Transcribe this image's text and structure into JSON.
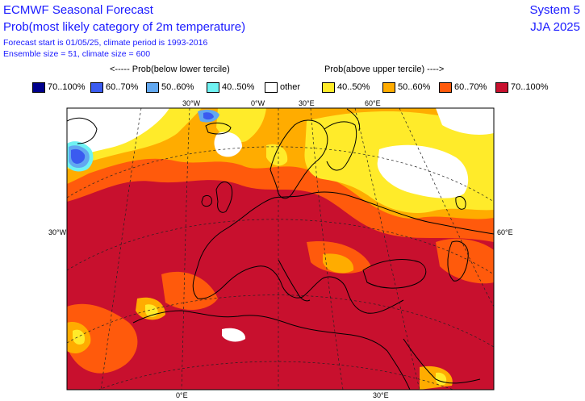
{
  "header": {
    "title_line1": "ECMWF Seasonal Forecast",
    "title_line2": "Prob(most likely category of 2m temperature)",
    "meta_line1": "Forecast start is 01/05/25, climate period is 1993-2016",
    "meta_line2": "Ensemble size = 51, climate size = 600",
    "system": "System 5",
    "season": "JJA 2025"
  },
  "legend": {
    "below_heading": "<----- Prob(below lower tercile)",
    "above_heading": "Prob(above upper tercile) ---->",
    "items": [
      {
        "label": "70..100%",
        "color": "#00008c"
      },
      {
        "label": "60..70%",
        "color": "#3a5bf0"
      },
      {
        "label": "50..60%",
        "color": "#62a8f0"
      },
      {
        "label": "40..50%",
        "color": "#6ff2f2"
      },
      {
        "label": "other",
        "color": "#ffffff"
      },
      {
        "label": "40..50%",
        "color": "#ffeb2a"
      },
      {
        "label": "50..60%",
        "color": "#ffac00"
      },
      {
        "label": "60..70%",
        "color": "#ff5a0c"
      },
      {
        "label": "70..100%",
        "color": "#c8102e"
      }
    ]
  },
  "map": {
    "projection": "conic",
    "region": "Europe, North Atlantic and North Africa",
    "labels": {
      "top": [
        "30°W",
        "0°W",
        "30°E",
        "60°E"
      ],
      "left": "30°W",
      "right": "60°E",
      "bottom": [
        "0°E",
        "30°E"
      ]
    }
  }
}
